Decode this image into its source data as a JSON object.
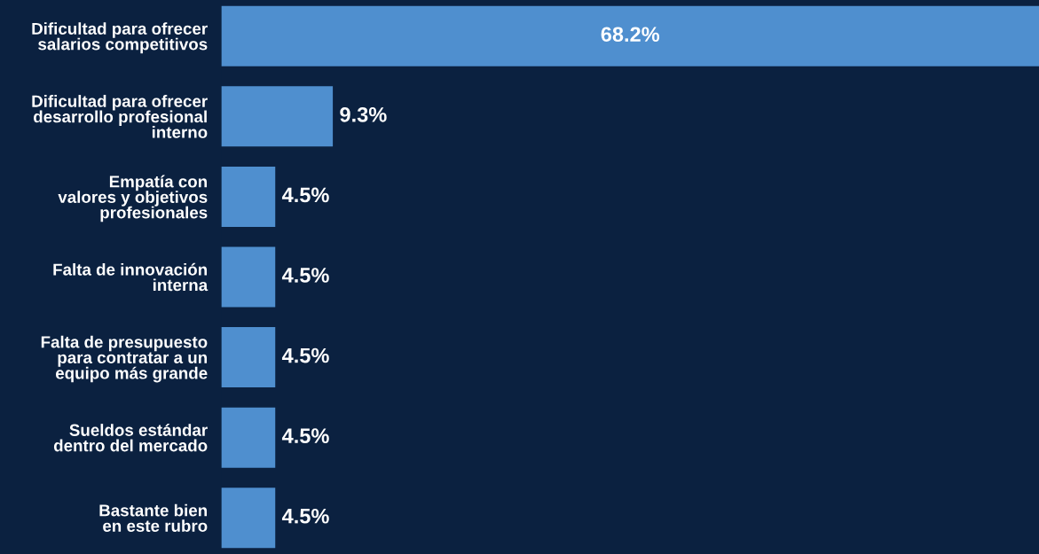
{
  "chart_data": {
    "type": "bar",
    "orientation": "horizontal",
    "categories": [
      "Dificultad para ofrecer\nsalarios competitivos",
      "Dificultad para ofrecer\ndesarrollo profesional\ninterno",
      "Empatía con\nvalores y objetivos\nprofesionales",
      "Falta de innovación\ninterna",
      "Falta de presupuesto\npara contratar a un\nequipo más grande",
      "Sueldos estándar\ndentro del mercado",
      "Bastante bien\nen este rubro"
    ],
    "values": [
      68.2,
      9.3,
      4.5,
      4.5,
      4.5,
      4.5,
      4.5
    ],
    "value_labels": [
      "68.2%",
      "9.3%",
      "4.5%",
      "4.5%",
      "4.5%",
      "4.5%",
      "4.5%"
    ],
    "color": "#4f8fcf",
    "grid": false,
    "legend": false
  }
}
